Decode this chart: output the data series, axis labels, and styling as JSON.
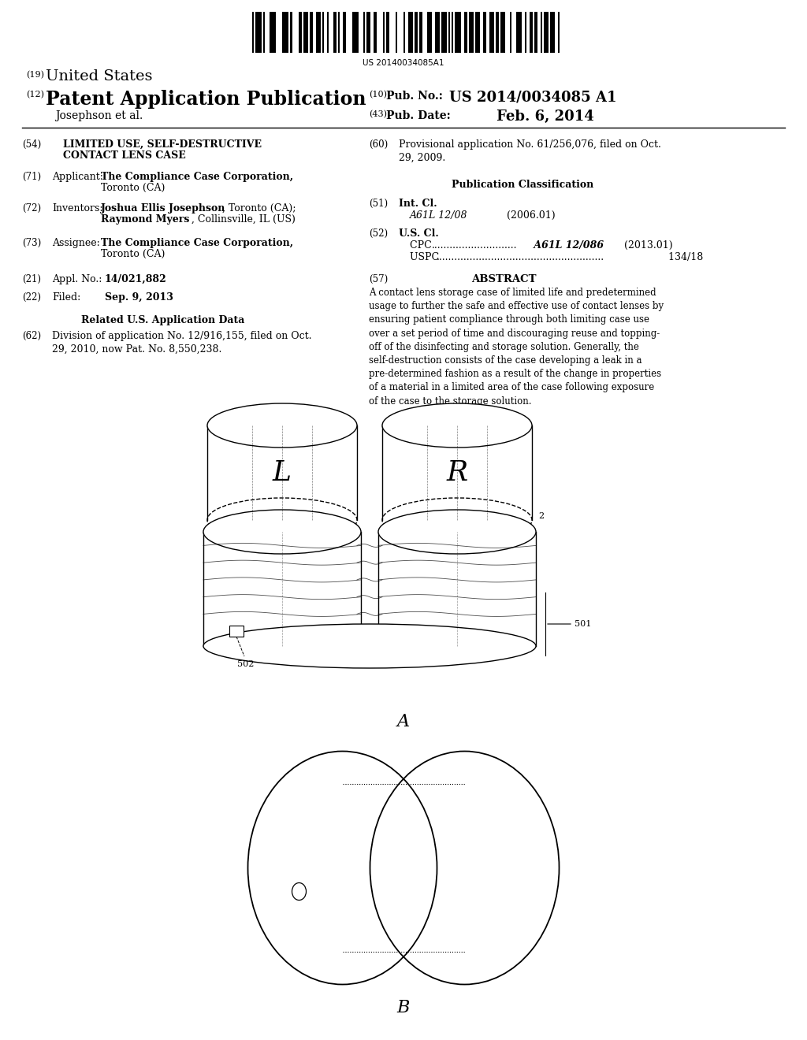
{
  "background_color": "#ffffff",
  "barcode_text": "US 20140034085A1",
  "title_19": "(19) United States",
  "title_12": "(12) Patent Application Publication",
  "pub_no_label": "(10) Pub. No.:",
  "pub_no_value": "US 2014/0034085 A1",
  "inventor_label": "Josephson et al.",
  "pub_date_label": "(43) Pub. Date:",
  "pub_date_value": "Feb. 6, 2014",
  "fig_A_label": "A",
  "fig_B_label": "B",
  "label_2": "2",
  "label_501": "501",
  "label_502": "502"
}
